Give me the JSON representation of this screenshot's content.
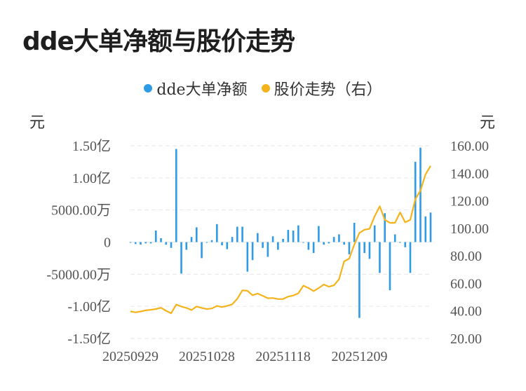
{
  "title": "dde大单净额与股价走势",
  "legend": [
    {
      "label": "dde大单净额",
      "color": "#2e9be6"
    },
    {
      "label": "股价走势（右）",
      "color": "#f5b31b"
    }
  ],
  "units": {
    "left": "元",
    "right": "元"
  },
  "chart_data": {
    "type": "bar+line",
    "y_left": {
      "ticks": [
        {
          "value": 1.5,
          "label": "1.50亿"
        },
        {
          "value": 1.0,
          "label": "1.00亿"
        },
        {
          "value": 0.5,
          "label": "5000.00万"
        },
        {
          "value": 0,
          "label": "0"
        },
        {
          "value": -0.5,
          "label": "-5000.00万"
        },
        {
          "value": -1.0,
          "label": "-1.00亿"
        },
        {
          "value": -1.5,
          "label": "-1.50亿"
        }
      ],
      "range": [
        -1.5,
        1.5
      ]
    },
    "y_right": {
      "ticks": [
        {
          "value": 160,
          "label": "160.00"
        },
        {
          "value": 140,
          "label": "140.00"
        },
        {
          "value": 120,
          "label": "120.00"
        },
        {
          "value": 100,
          "label": "100.00"
        },
        {
          "value": 80,
          "label": "80.00"
        },
        {
          "value": 60,
          "label": "60.00"
        },
        {
          "value": 40,
          "label": "40.00"
        },
        {
          "value": 20,
          "label": "20.00"
        }
      ],
      "range": [
        20,
        160
      ]
    },
    "x_ticks": [
      {
        "index": 0,
        "label": "20250929"
      },
      {
        "index": 15,
        "label": "20251028"
      },
      {
        "index": 30,
        "label": "20251118"
      },
      {
        "index": 45,
        "label": "20251209"
      }
    ],
    "series": [
      {
        "name": "dde大单净额",
        "type": "bar",
        "axis": "left",
        "values": [
          -0.01,
          -0.03,
          -0.04,
          -0.02,
          -0.02,
          0.18,
          0.06,
          -0.04,
          -0.09,
          1.45,
          -0.49,
          -0.12,
          0.08,
          0.23,
          -0.25,
          -0.01,
          0.03,
          0.28,
          -0.05,
          -0.11,
          0.08,
          0.24,
          0.24,
          -0.46,
          -0.28,
          0.14,
          -0.09,
          -0.23,
          0.09,
          -0.12,
          0.05,
          0.19,
          0.18,
          0.26,
          -0.01,
          -0.12,
          -0.17,
          0.25,
          -0.04,
          -0.02,
          0.08,
          0.12,
          -0.04,
          -0.19,
          0.3,
          -1.18,
          -0.17,
          -0.26,
          0.26,
          -0.48,
          0.45,
          -0.75,
          0.12,
          -0.01,
          -0.08,
          -0.48,
          1.25,
          1.47,
          0.4,
          0.46
        ]
      },
      {
        "name": "股价走势（右）",
        "type": "line",
        "axis": "right",
        "values": [
          39.6,
          39.0,
          39.6,
          40.4,
          40.8,
          41.4,
          42.3,
          40.1,
          38.3,
          44.6,
          43.2,
          42.2,
          40.6,
          43.2,
          42.2,
          41.4,
          41.8,
          43.6,
          42.8,
          43.6,
          44.8,
          48.8,
          55.0,
          54.6,
          51.4,
          52.6,
          51.0,
          49.2,
          49.4,
          48.6,
          48.6,
          50.4,
          51.2,
          52.8,
          58.4,
          56.6,
          54.4,
          56.6,
          59.2,
          57.6,
          58.6,
          63.0,
          76.0,
          78.0,
          88.2,
          96.6,
          99.0,
          99.6,
          108.8,
          116.0,
          106.2,
          104.0,
          104.0,
          111.6,
          104.4,
          106.2,
          121.2,
          127.4,
          139.2,
          145.4
        ]
      }
    ]
  }
}
